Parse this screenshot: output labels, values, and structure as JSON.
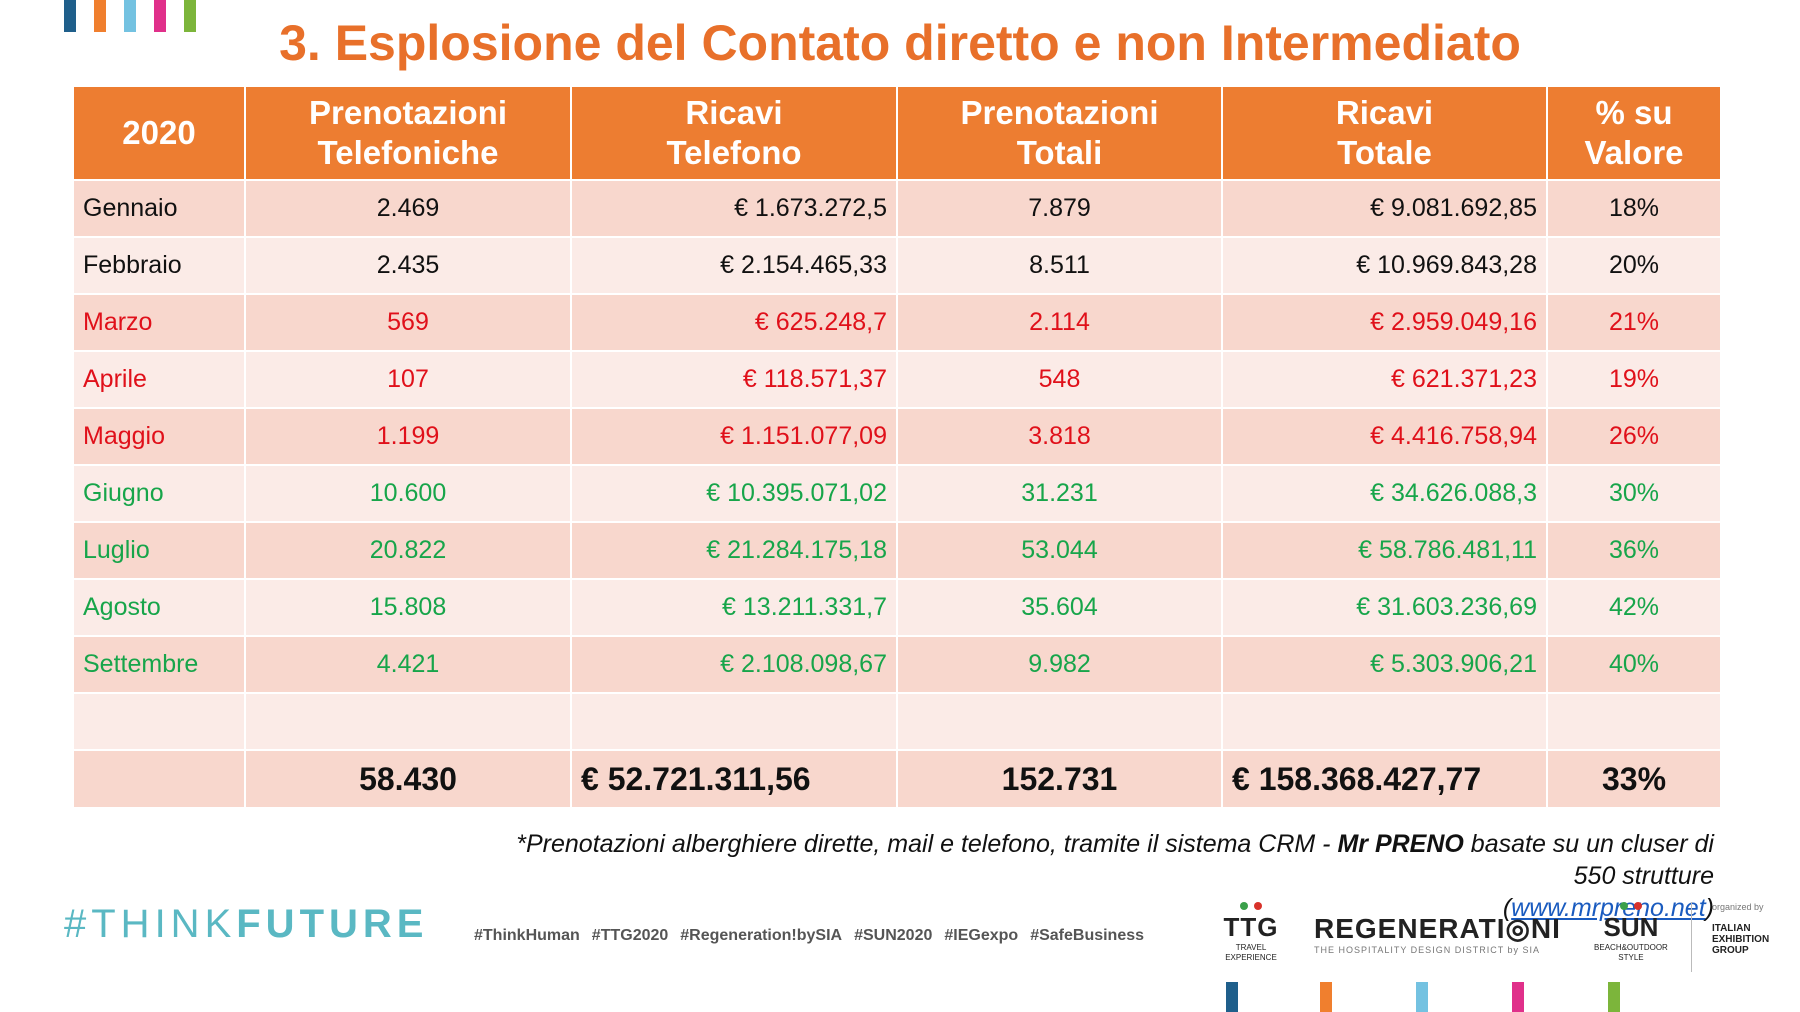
{
  "top_stripes": [
    "#1f5f8b",
    "#f07f2e",
    "#74c2e1",
    "#e0308a",
    "#7cb53b"
  ],
  "title": "3. Esplosione del Contato diretto e non Intermediato",
  "table": {
    "headers": [
      [
        "2020"
      ],
      [
        "Prenotazioni",
        "Telefoniche"
      ],
      [
        "Ricavi",
        "Telefono"
      ],
      [
        "Prenotazioni",
        "Totali"
      ],
      [
        "Ricavi",
        "Totale"
      ],
      [
        "% su",
        "Valore"
      ]
    ],
    "rows": [
      {
        "color": "black",
        "cells": [
          "Gennaio",
          "2.469",
          "€ 1.673.272,5",
          "7.879",
          "€ 9.081.692,85",
          "18%"
        ]
      },
      {
        "color": "black",
        "cells": [
          "Febbraio",
          "2.435",
          "€ 2.154.465,33",
          "8.511",
          "€ 10.969.843,28",
          "20%"
        ]
      },
      {
        "color": "red",
        "cells": [
          "Marzo",
          "569",
          "€ 625.248,7",
          "2.114",
          "€ 2.959.049,16",
          "21%"
        ]
      },
      {
        "color": "red",
        "cells": [
          "Aprile",
          "107",
          "€ 118.571,37",
          "548",
          "€ 621.371,23",
          "19%"
        ]
      },
      {
        "color": "red",
        "cells": [
          "Maggio",
          "1.199",
          "€ 1.151.077,09",
          "3.818",
          "€ 4.416.758,94",
          "26%"
        ]
      },
      {
        "color": "green",
        "cells": [
          "Giugno",
          "10.600",
          "€ 10.395.071,02",
          "31.231",
          "€ 34.626.088,3",
          "30%"
        ]
      },
      {
        "color": "green",
        "cells": [
          "Luglio",
          "20.822",
          "€ 21.284.175,18",
          "53.044",
          "€ 58.786.481,11",
          "36%"
        ]
      },
      {
        "color": "green",
        "cells": [
          "Agosto",
          "15.808",
          "€ 13.211.331,7",
          "35.604",
          "€ 31.603.236,69",
          "42%"
        ]
      },
      {
        "color": "green",
        "cells": [
          "Settembre",
          "4.421",
          "€ 2.108.098,67",
          "9.982",
          "€ 5.303.906,21",
          "40%"
        ]
      },
      {
        "color": "black",
        "cells": [
          "",
          "",
          "",
          "",
          "",
          ""
        ]
      }
    ],
    "total": [
      "",
      "58.430",
      "€ 52.721.311,56",
      "152.731",
      "€ 158.368.427,77",
      "33%"
    ]
  },
  "footnote": {
    "prefix": "*Prenotazioni alberghiere dirette, mail e telefono, tramite il sistema CRM - ",
    "bold": "Mr PRENO",
    "suffix": " basate su un cluser di 550 strutture",
    "link_open": "(",
    "link": "www.mrpreno.net",
    "link_close": ")"
  },
  "think": {
    "light": "#THINK",
    "bold": "FUTURE"
  },
  "hashtags": [
    "#ThinkHuman",
    "#TTG2020",
    "#Regeneration!bySIA",
    "#SUN2020",
    "#IEGexpo",
    "#SafeBusiness"
  ],
  "logos": {
    "ttg": {
      "name": "TTG",
      "sub1": "TRAVEL",
      "sub2": "EXPERIENCE"
    },
    "regeneration": {
      "name": "REGENERATI◎NI",
      "sub": "THE HOSPITALITY DESIGN DISTRICT by SIA"
    },
    "sun": {
      "name": "SUN",
      "sub1": "BEACH&OUTDOOR",
      "sub2": "STYLE"
    },
    "ieg": {
      "organized": "organized by",
      "line1": "ITALIAN",
      "line2": "EXHIBITION",
      "line3": "GROUP"
    }
  },
  "colors": {
    "accent": "#ed7d31",
    "title": "#e8702a",
    "row_odd": "#f8d7cd",
    "row_even": "#fbebe7",
    "red_text": "#e0101a",
    "green_text": "#17a54a",
    "think": "#5ab8c3"
  }
}
